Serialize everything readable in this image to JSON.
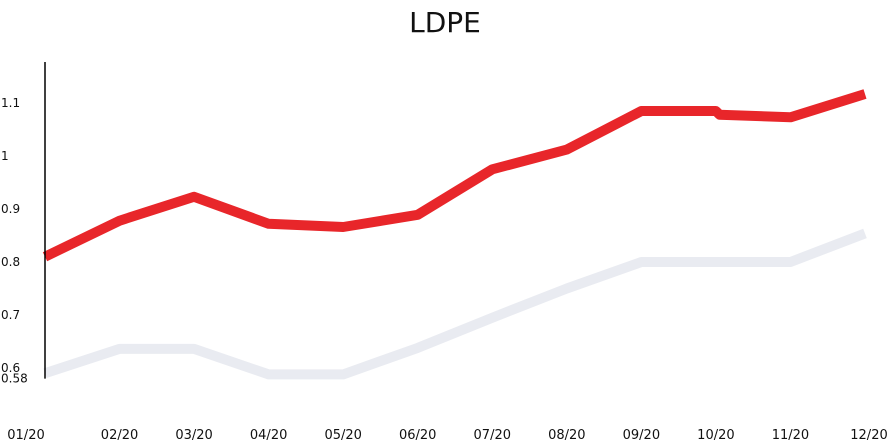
{
  "chart_data": {
    "type": "line",
    "title": "LDPE",
    "xlabel": "",
    "ylabel": "",
    "categories": [
      "01/20",
      "02/20",
      "03/20",
      "04/20",
      "05/20",
      "06/20",
      "07/20",
      "08/20",
      "09/20",
      "10/20",
      "11/20",
      "12/20"
    ],
    "y_ticks": [
      "0.58",
      "0.6",
      "0.7",
      "0.8",
      "0.9",
      "1",
      "1.1"
    ],
    "ylim": [
      0.58,
      1.17
    ],
    "grid": false,
    "series": [
      {
        "color": "#e8262a",
        "points": [
          [
            0,
            0.81
          ],
          [
            1,
            0.878
          ],
          [
            2,
            0.923
          ],
          [
            3,
            0.872
          ],
          [
            4,
            0.866
          ],
          [
            5,
            0.889
          ],
          [
            6,
            0.975
          ],
          [
            7,
            1.012
          ],
          [
            8,
            1.085
          ],
          [
            9,
            1.085
          ],
          [
            9.05,
            1.078
          ],
          [
            10,
            1.073
          ],
          [
            11,
            1.117
          ]
        ]
      },
      {
        "color": "#e9ebf1",
        "points": [
          [
            0,
            0.59
          ],
          [
            1,
            0.636
          ],
          [
            2,
            0.636
          ],
          [
            3,
            0.588
          ],
          [
            4,
            0.588
          ],
          [
            5,
            0.638
          ],
          [
            6,
            0.695
          ],
          [
            7,
            0.75
          ],
          [
            8,
            0.8
          ],
          [
            9,
            0.8
          ],
          [
            10,
            0.8
          ],
          [
            11,
            0.854
          ]
        ]
      }
    ]
  }
}
